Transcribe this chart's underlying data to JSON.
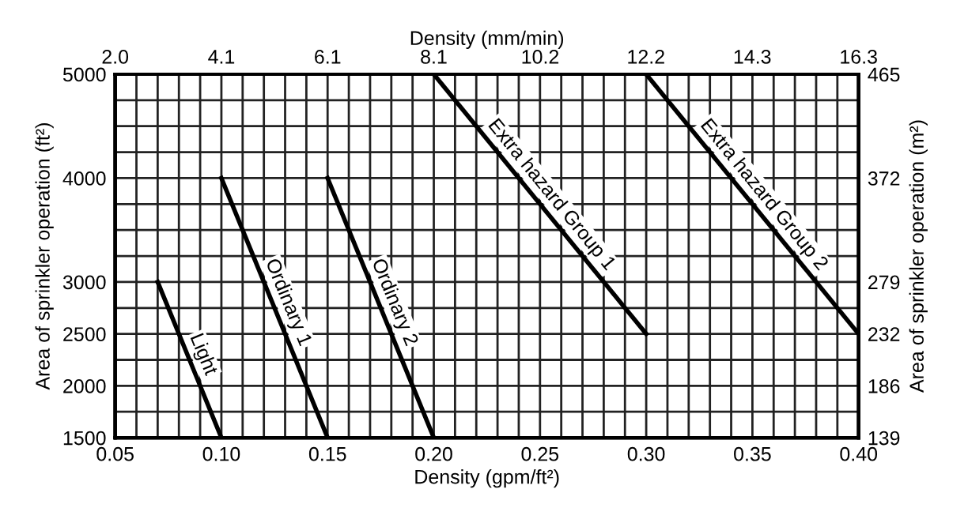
{
  "chart_data": {
    "type": "line",
    "xlabel": "Density (gpm/ft²)",
    "ylabel": "Area of sprinkler operation (ft²)",
    "y2label": "Area of sprinkler operation (m²)",
    "x2label": "Density (mm/min)",
    "xlim": [
      0.05,
      0.4
    ],
    "xticks": [
      0.05,
      {
        "value": 0.1,
        "label": "0.10"
      },
      0.15,
      {
        "value": 0.2,
        "label": "0.20"
      },
      0.25,
      {
        "value": 0.3,
        "label": "0.30"
      },
      0.35,
      {
        "value": 0.4,
        "label": "0.40"
      }
    ],
    "ylim": [
      1500,
      5000
    ],
    "yticks": [
      1500,
      2000,
      2500,
      3000,
      4000,
      5000
    ],
    "x2lim": [
      2.037,
      16.3
    ],
    "x2ticks": [
      {
        "value": 2.037,
        "label": "2.0"
      },
      {
        "value": 4.075,
        "label": "4.1"
      },
      {
        "value": 6.112,
        "label": "6.1"
      },
      {
        "value": 8.149,
        "label": "8.1"
      },
      {
        "value": 10.19,
        "label": "10.2"
      },
      {
        "value": 12.22,
        "label": "12.2"
      },
      {
        "value": 14.26,
        "label": "14.3"
      },
      {
        "value": 16.3,
        "label": "16.3"
      }
    ],
    "y2lim": [
      139.35,
      464.5
    ],
    "y2ticks": [
      {
        "value": 139.35,
        "label": "139"
      },
      {
        "value": 185.8,
        "label": "186"
      },
      {
        "value": 232.3,
        "label": "232"
      },
      {
        "value": 278.7,
        "label": "279"
      },
      {
        "value": 371.6,
        "label": "372"
      },
      {
        "value": 464.5,
        "label": "465"
      }
    ],
    "grid": true,
    "marker": "none",
    "line_style": "solid",
    "series": [
      {
        "name": "Light",
        "color": "#000000",
        "x": [
          0.07,
          0.1
        ],
        "values": [
          3000,
          1500
        ]
      },
      {
        "name": "Ordinary 1",
        "color": "#000000",
        "x": [
          0.1,
          0.15
        ],
        "values": [
          4000,
          1500
        ]
      },
      {
        "name": "Ordinary 2",
        "color": "#000000",
        "x": [
          0.15,
          0.2
        ],
        "values": [
          4000,
          1500
        ]
      },
      {
        "name": "Extra hazard Group 1",
        "color": "#000000",
        "x": [
          0.2,
          0.3
        ],
        "values": [
          5000,
          2500
        ]
      },
      {
        "name": "Extra hazard Group 2",
        "color": "#000000",
        "x": [
          0.3,
          0.4
        ],
        "values": [
          5000,
          2500
        ]
      }
    ]
  }
}
